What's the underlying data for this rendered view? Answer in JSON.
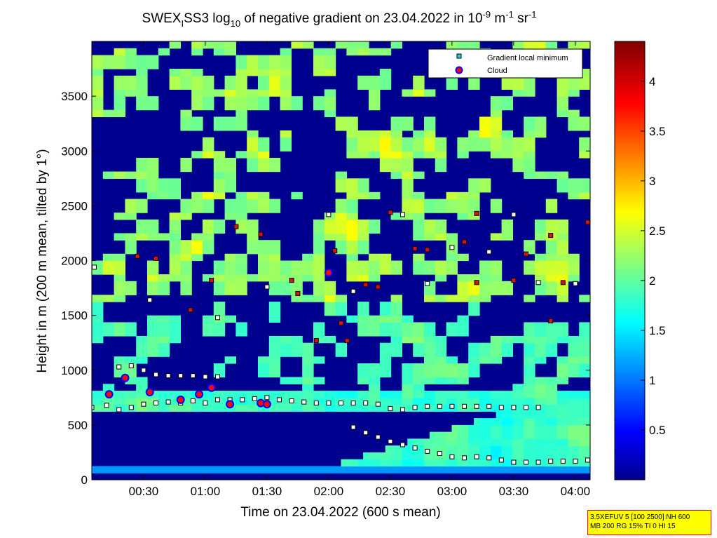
{
  "chart_data": {
    "type": "heatmap",
    "title": {
      "part1": "SWEX",
      "sub1": "I",
      "part2": "SS3 log",
      "sub2": "10",
      "part3": " of negative gradient on 23.04.2022 in 10",
      "sup1": "-9",
      "part4": " m",
      "sup2": "-1",
      "part5": " sr",
      "sup3": "-1"
    },
    "xlabel": "Time on 23.04.2022 (600 s mean)",
    "ylabel": "Height in m (200 m mean, tilted by 1°)",
    "x_range_hours": [
      0.08,
      4.12
    ],
    "y_range_m": [
      0,
      4000
    ],
    "x_ticks": [
      {
        "label": "00:30",
        "hours": 0.5
      },
      {
        "label": "01:00",
        "hours": 1.0
      },
      {
        "label": "01:30",
        "hours": 1.5
      },
      {
        "label": "02:00",
        "hours": 2.0
      },
      {
        "label": "02:30",
        "hours": 2.5
      },
      {
        "label": "03:00",
        "hours": 3.0
      },
      {
        "label": "03:30",
        "hours": 3.5
      },
      {
        "label": "04:00",
        "hours": 4.0
      }
    ],
    "y_ticks": [
      0,
      500,
      1000,
      1500,
      2000,
      2500,
      3000,
      3500
    ],
    "colorbar": {
      "colormap": "jet",
      "range": [
        0,
        4.4
      ],
      "ticks": [
        "0.5",
        "1",
        "1.5",
        "2",
        "2.5",
        "3",
        "3.5",
        "4"
      ]
    },
    "legend": {
      "placement": "top-right",
      "entries": [
        {
          "label": "Gradient local minimum",
          "color": "#33cccc",
          "marker": "square"
        },
        {
          "label": "Cloud",
          "color": "#ff0000",
          "edge": "#0000ff",
          "marker": "circle"
        }
      ]
    },
    "series": [
      {
        "id": "lower-layer",
        "points": [
          [
            0.08,
            660
          ],
          [
            0.2,
            680
          ],
          [
            0.3,
            640
          ],
          [
            0.4,
            660
          ],
          [
            0.5,
            690
          ],
          [
            0.6,
            700
          ],
          [
            0.7,
            710
          ],
          [
            0.8,
            700
          ],
          [
            0.9,
            720
          ],
          [
            1.0,
            700
          ],
          [
            1.1,
            730
          ],
          [
            1.2,
            730
          ],
          [
            1.3,
            730
          ],
          [
            1.4,
            740
          ],
          [
            1.5,
            750
          ],
          [
            1.6,
            730
          ],
          [
            1.7,
            720
          ],
          [
            1.8,
            710
          ],
          [
            1.9,
            700
          ],
          [
            2.0,
            700
          ],
          [
            2.1,
            700
          ],
          [
            2.2,
            700
          ],
          [
            2.3,
            700
          ],
          [
            2.4,
            690
          ],
          [
            2.5,
            650
          ],
          [
            2.6,
            640
          ],
          [
            2.7,
            660
          ],
          [
            2.8,
            670
          ],
          [
            2.9,
            670
          ],
          [
            3.0,
            670
          ],
          [
            3.1,
            670
          ],
          [
            3.2,
            670
          ],
          [
            3.3,
            670
          ],
          [
            3.4,
            660
          ],
          [
            3.5,
            660
          ],
          [
            3.6,
            660
          ],
          [
            3.7,
            660
          ]
        ]
      },
      {
        "id": "upper-layer",
        "points": [
          [
            0.3,
            1030
          ],
          [
            0.4,
            1040
          ],
          [
            0.5,
            1000
          ],
          [
            0.6,
            960
          ],
          [
            0.7,
            950
          ],
          [
            0.8,
            950
          ],
          [
            0.9,
            950
          ],
          [
            1.0,
            940
          ],
          [
            1.1,
            940
          ]
        ]
      },
      {
        "id": "boundary-layer-top",
        "points": [
          [
            2.2,
            480
          ],
          [
            2.3,
            430
          ],
          [
            2.4,
            390
          ],
          [
            2.5,
            350
          ],
          [
            2.6,
            320
          ],
          [
            2.7,
            290
          ],
          [
            2.8,
            260
          ],
          [
            2.9,
            240
          ],
          [
            3.0,
            210
          ],
          [
            3.1,
            200
          ],
          [
            3.2,
            210
          ],
          [
            3.3,
            200
          ],
          [
            3.4,
            180
          ],
          [
            3.5,
            160
          ],
          [
            3.6,
            160
          ],
          [
            3.7,
            160
          ],
          [
            3.8,
            170
          ],
          [
            3.9,
            170
          ],
          [
            4.0,
            170
          ],
          [
            4.1,
            180
          ]
        ]
      },
      {
        "id": "scattered-minima",
        "points": [
          [
            0.1,
            1940
          ],
          [
            0.45,
            2040
          ],
          [
            0.6,
            2020
          ],
          [
            0.55,
            1640
          ],
          [
            0.88,
            1550
          ],
          [
            1.05,
            1820
          ],
          [
            1.1,
            1480
          ],
          [
            1.25,
            2310
          ],
          [
            1.45,
            2240
          ],
          [
            1.5,
            1760
          ],
          [
            1.7,
            1820
          ],
          [
            1.75,
            1700
          ],
          [
            2.0,
            2420
          ],
          [
            2.05,
            2090
          ],
          [
            2.1,
            1430
          ],
          [
            2.2,
            1720
          ],
          [
            2.3,
            1780
          ],
          [
            2.5,
            2440
          ],
          [
            2.6,
            2420
          ],
          [
            2.7,
            2110
          ],
          [
            2.8,
            2100
          ],
          [
            3.0,
            2120
          ],
          [
            3.1,
            2170
          ],
          [
            3.2,
            1800
          ],
          [
            3.3,
            2080
          ],
          [
            3.5,
            1820
          ],
          [
            3.6,
            2060
          ],
          [
            3.7,
            1800
          ],
          [
            3.8,
            2230
          ],
          [
            3.9,
            1800
          ],
          [
            4.0,
            1790
          ],
          [
            4.1,
            2350
          ],
          [
            3.2,
            2430
          ],
          [
            3.5,
            2420
          ],
          [
            3.8,
            1450
          ],
          [
            2.4,
            1760
          ],
          [
            2.8,
            1790
          ],
          [
            1.9,
            1270
          ],
          [
            2.15,
            1270
          ]
        ]
      }
    ],
    "clouds": [
      [
        0.22,
        780
      ],
      [
        0.35,
        930
      ],
      [
        0.55,
        800
      ],
      [
        0.8,
        730
      ],
      [
        0.95,
        780
      ],
      [
        1.05,
        840
      ],
      [
        1.2,
        690
      ],
      [
        1.45,
        700
      ],
      [
        1.5,
        690
      ],
      [
        2.0,
        1890
      ]
    ]
  },
  "info_box": {
    "line1": "3.5XEFUV 5 [100 2500] NH 600",
    "line2": "MB 200 RG 15% TI 0 HI 15"
  }
}
